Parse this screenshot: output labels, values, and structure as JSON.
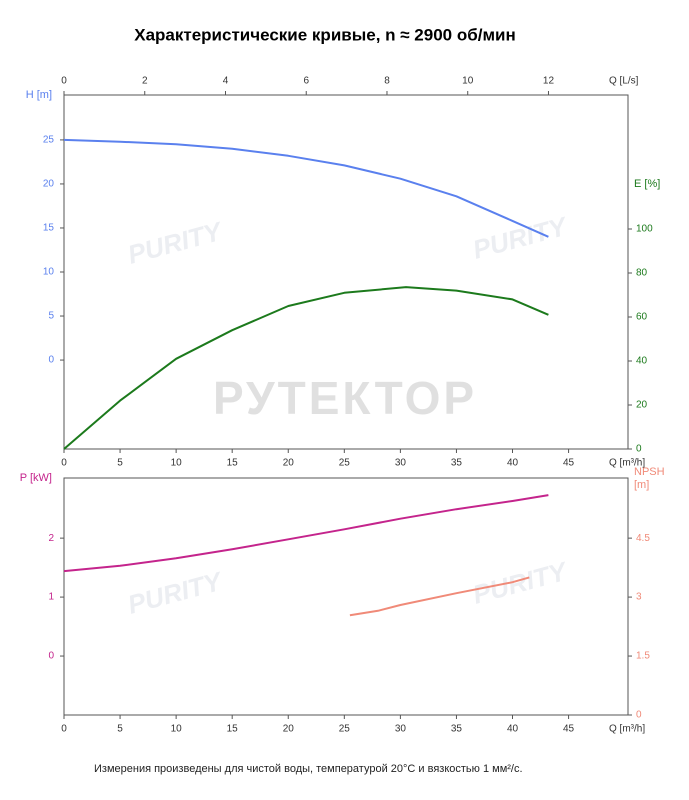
{
  "title": "Характеристические кривые, n ≈ 2900 об/мин",
  "note": "Измерения произведены для чистой воды, температурой 20°C и вязкостью 1 мм²/с.",
  "watermark": "РУТЕКТОР",
  "logo_text": "PURITY",
  "chart_data": [
    {
      "type": "line",
      "xlabel": "Q [m³/h]",
      "x2label": "Q [L/s]",
      "ylabel": "H [m]",
      "y2label": [
        "E [%]"
      ],
      "xlim": [
        0,
        50.3
      ],
      "xticks": [
        0,
        5,
        10,
        15,
        20,
        25,
        30,
        35,
        40,
        45
      ],
      "x2lim": [
        0,
        13.97
      ],
      "x2ticks": [
        0,
        2,
        4,
        6,
        8,
        10,
        12
      ],
      "ylim": [
        -10.1,
        30.1
      ],
      "yticks": [
        0,
        5,
        10,
        15,
        20,
        25
      ],
      "y2lim": [
        0,
        160.9
      ],
      "y2ticks": [
        0,
        20,
        40,
        60,
        80,
        100
      ],
      "series": [
        {
          "name": "H",
          "color": "#5a80ee",
          "axis": "y",
          "x": [
            0,
            5,
            10,
            15,
            20,
            25,
            30,
            35,
            40,
            43.2
          ],
          "values": [
            25,
            24.8,
            24.5,
            24.0,
            23.2,
            22.1,
            20.6,
            18.6,
            15.8,
            14.0
          ]
        },
        {
          "name": "E",
          "color": "#1c7a1c",
          "axis": "y2",
          "x": [
            0,
            5,
            10,
            15,
            20,
            25,
            30.5,
            35,
            40,
            43.2
          ],
          "values": [
            0,
            22,
            41,
            54,
            65,
            71,
            73.6,
            72,
            68,
            61
          ]
        }
      ]
    },
    {
      "type": "line",
      "xlabel": "Q [m³/h]",
      "ylabel": "P [kW]",
      "y2label": [
        "NPSH",
        "[m]"
      ],
      "xlim": [
        0,
        50.3
      ],
      "xticks": [
        0,
        5,
        10,
        15,
        20,
        25,
        30,
        35,
        40,
        45
      ],
      "ylim": [
        -1,
        3.02
      ],
      "yticks": [
        0,
        1,
        2
      ],
      "y2lim": [
        0,
        6.03
      ],
      "y2ticks": [
        0,
        1.5,
        3,
        4.5
      ],
      "series": [
        {
          "name": "P",
          "color": "#c4248c",
          "axis": "y",
          "x": [
            0,
            5,
            10,
            15,
            20,
            25,
            30,
            35,
            40,
            43.2
          ],
          "values": [
            1.44,
            1.53,
            1.66,
            1.81,
            1.98,
            2.15,
            2.33,
            2.49,
            2.63,
            2.73
          ]
        },
        {
          "name": "NPSH",
          "color": "#f08a78",
          "axis": "y2",
          "x": [
            25.5,
            28,
            30,
            35,
            40,
            41.5
          ],
          "values": [
            2.54,
            2.65,
            2.8,
            3.1,
            3.38,
            3.5
          ]
        }
      ]
    }
  ]
}
